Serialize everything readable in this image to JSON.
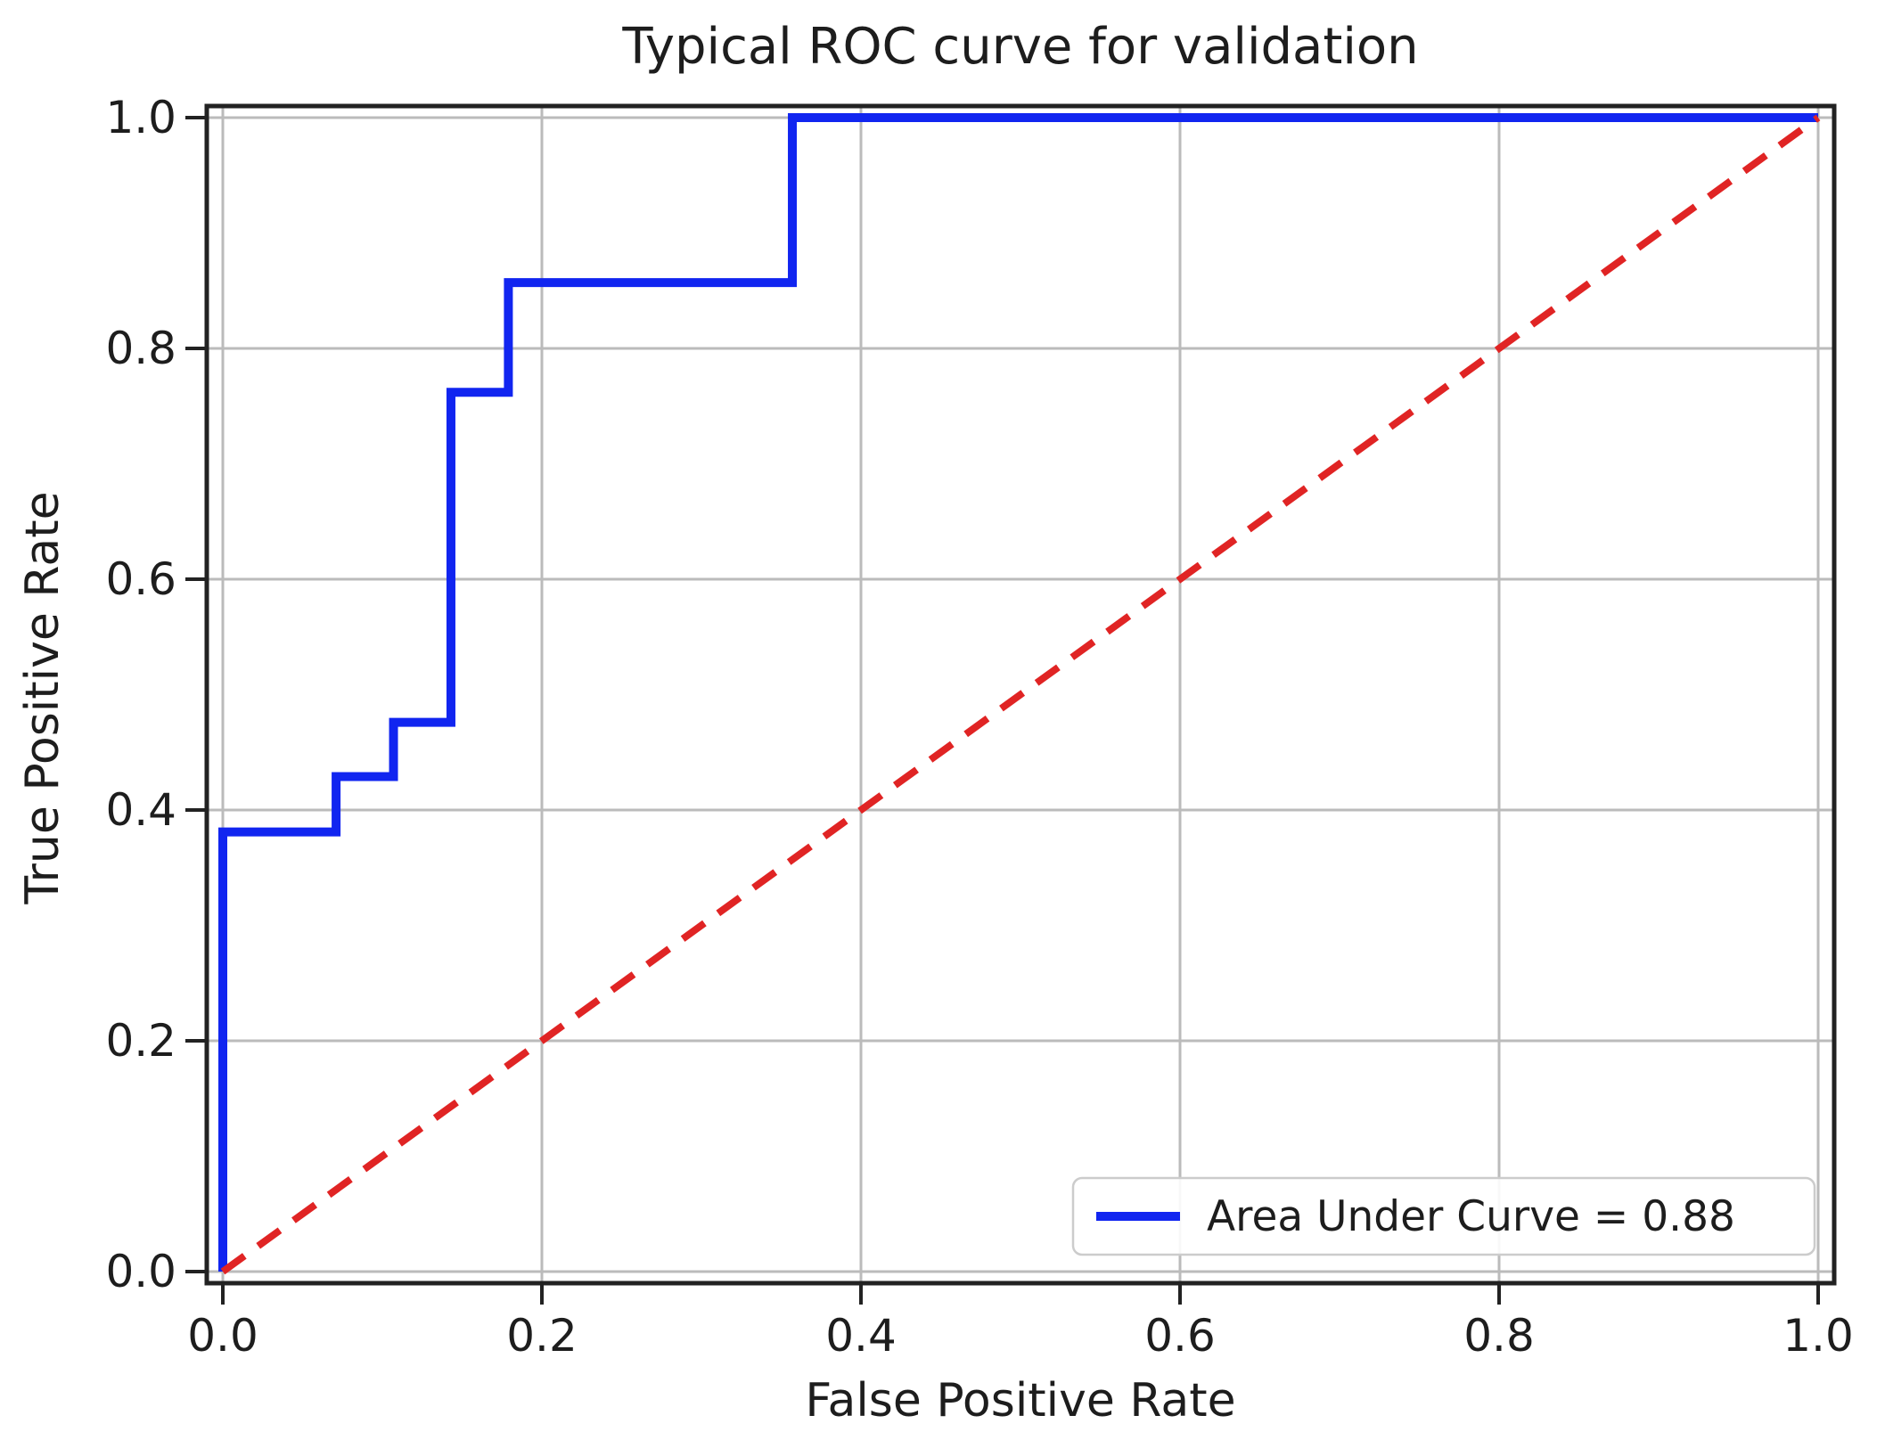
{
  "chart_data": {
    "type": "line",
    "title": "Typical ROC curve for validation",
    "xlabel": "False Positive Rate",
    "ylabel": "True Positive Rate",
    "xlim": [
      -0.01,
      1.01
    ],
    "ylim": [
      -0.01,
      1.01
    ],
    "grid": true,
    "xticks": [
      0.0,
      0.2,
      0.4,
      0.6,
      0.8,
      1.0
    ],
    "yticks": [
      0.0,
      0.2,
      0.4,
      0.6,
      0.8,
      1.0
    ],
    "xtick_labels": [
      "0.0",
      "0.2",
      "0.4",
      "0.6",
      "0.8",
      "1.0"
    ],
    "ytick_labels": [
      "0.0",
      "0.2",
      "0.4",
      "0.6",
      "0.8",
      "1.0"
    ],
    "colors": {
      "roc": "#1125f0",
      "chance": "#e02424",
      "grid": "#bbbbbb",
      "spine": "#222222",
      "text": "#1d1d1d",
      "legend_border": "#cccccc",
      "legend_bg": "#ffffff"
    },
    "series": [
      {
        "name": "roc_curve",
        "style": "step-solid",
        "color": "#1125f0",
        "x": [
          0.0,
          0.0,
          0.071,
          0.071,
          0.107,
          0.107,
          0.143,
          0.143,
          0.179,
          0.179,
          0.357,
          0.357,
          1.0
        ],
        "y": [
          0.0,
          0.381,
          0.381,
          0.429,
          0.429,
          0.476,
          0.476,
          0.762,
          0.762,
          0.857,
          0.857,
          1.0,
          1.0
        ]
      },
      {
        "name": "chance_diagonal",
        "style": "dashed",
        "color": "#e02424",
        "x": [
          0.0,
          1.0
        ],
        "y": [
          0.0,
          1.0
        ]
      }
    ],
    "legend": {
      "position": "lower right",
      "entries": [
        {
          "label": "Area Under Curve = 0.88",
          "color": "#1125f0"
        }
      ]
    },
    "auc": 0.88
  }
}
